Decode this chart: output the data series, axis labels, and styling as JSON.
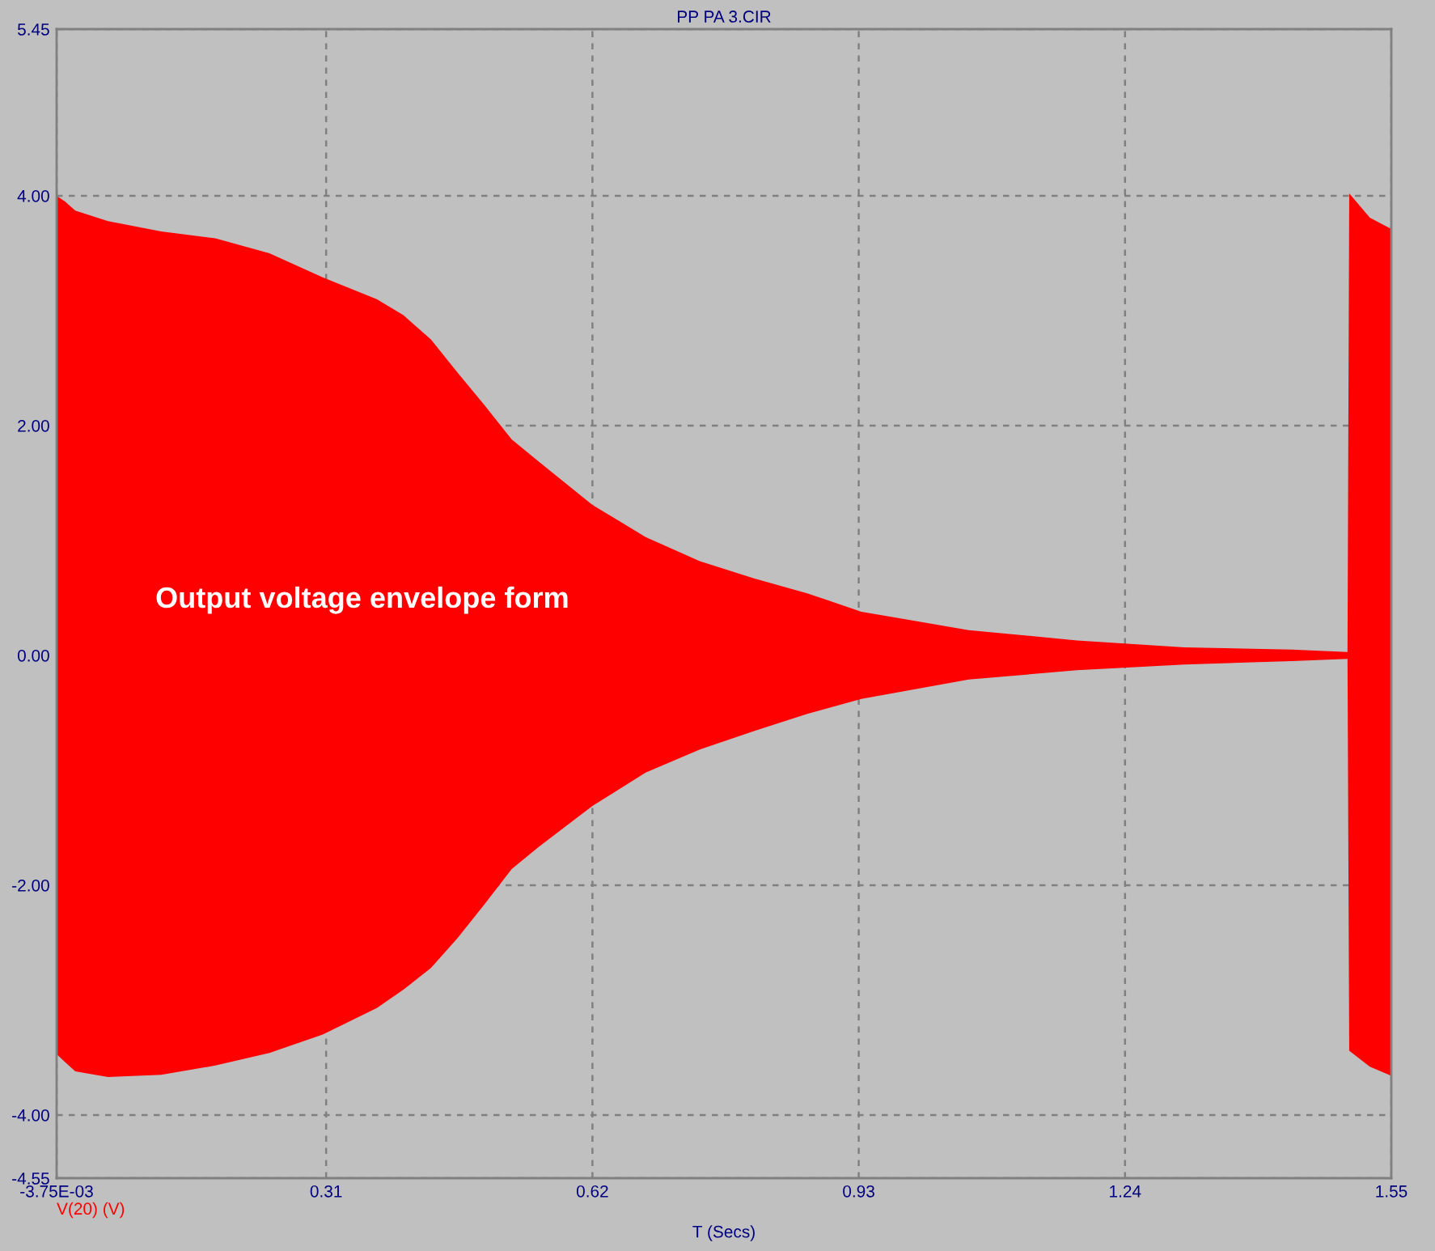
{
  "chart_data": {
    "type": "area",
    "title": "PP PA 3.CIR",
    "xlabel": "T (Secs)",
    "annotations": [
      "Output voltage envelope form"
    ],
    "x": [
      -0.00375,
      0.006,
      0.018,
      0.056,
      0.118,
      0.181,
      0.244,
      0.306,
      0.369,
      0.4,
      0.432,
      0.463,
      0.494,
      0.526,
      0.557,
      0.62,
      0.682,
      0.745,
      0.808,
      0.87,
      0.933,
      1.058,
      1.184,
      1.309,
      1.434,
      1.499,
      1.501,
      1.525,
      1.55
    ],
    "series": [
      {
        "name": "V(20) (V)",
        "color": "#ff0000",
        "values": [
          4.0,
          3.95,
          3.87,
          3.78,
          3.69,
          3.63,
          3.5,
          3.29,
          3.1,
          2.96,
          2.75,
          2.46,
          2.18,
          1.88,
          1.69,
          1.31,
          1.03,
          0.82,
          0.67,
          0.54,
          0.38,
          0.22,
          0.13,
          0.07,
          0.05,
          0.03,
          4.02,
          3.81,
          3.71
        ]
      },
      {
        "color": "#ff0000",
        "values": [
          -3.47,
          -3.54,
          -3.62,
          -3.67,
          -3.65,
          -3.57,
          -3.46,
          -3.3,
          -3.07,
          -2.91,
          -2.72,
          -2.46,
          -2.17,
          -1.86,
          -1.67,
          -1.31,
          -1.02,
          -0.82,
          -0.66,
          -0.51,
          -0.38,
          -0.21,
          -0.13,
          -0.08,
          -0.05,
          -0.03,
          -3.44,
          -3.58,
          -3.66
        ]
      }
    ],
    "xlim": [
      -0.00375,
      1.55
    ],
    "ylim": [
      -4.55,
      5.45
    ],
    "xticks": [
      {
        "value": -0.00375,
        "label": "-3.75E-03"
      },
      0.31,
      0.62,
      0.93,
      1.24,
      1.55
    ],
    "yticks": [
      {
        "value": -4.55,
        "label": "-4.55"
      },
      {
        "value": -4,
        "label": "-4.00"
      },
      {
        "value": -2,
        "label": "-2.00"
      },
      {
        "value": 0,
        "label": "0.00"
      },
      {
        "value": 2,
        "label": "2.00"
      },
      {
        "value": 4,
        "label": "4.00"
      },
      {
        "value": 5.45,
        "label": "5.45"
      }
    ],
    "grid": true,
    "legend": "bottom left"
  }
}
